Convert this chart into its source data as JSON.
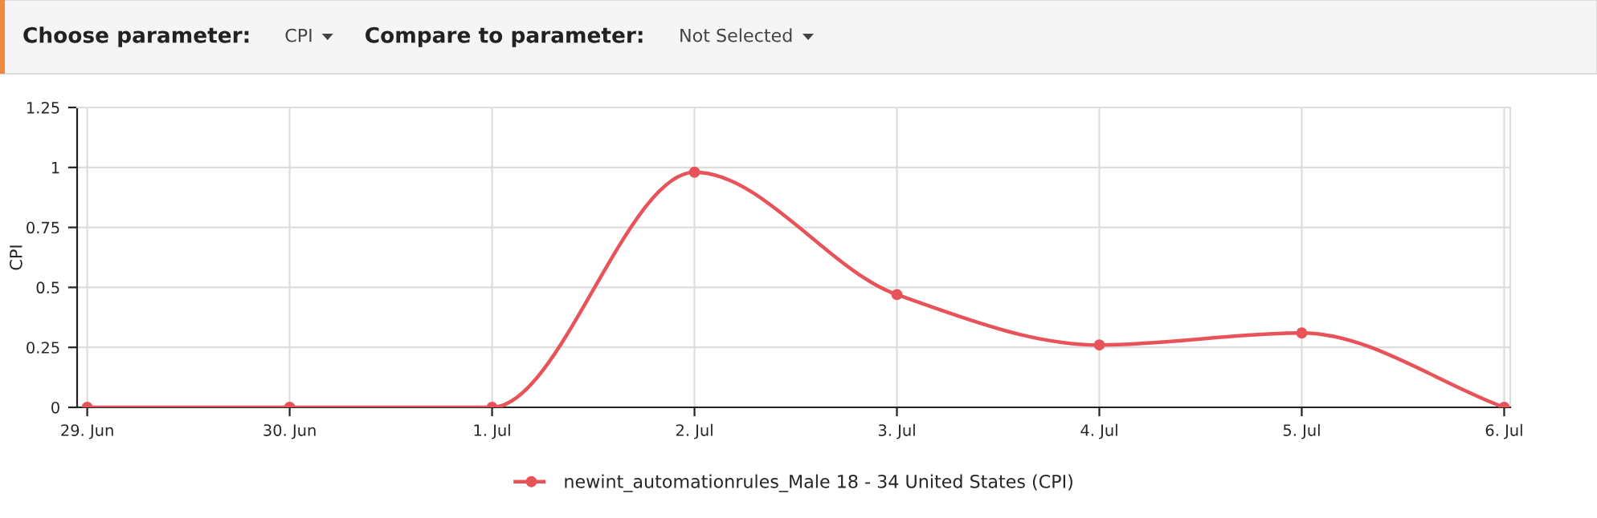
{
  "chart_data": {
    "type": "line",
    "ylabel": "CPI",
    "annotations": [
      "Choose parameter:",
      "CPI",
      "Compare to parameter:",
      "Not Selected"
    ],
    "categories": [
      "29. Jun",
      "30. Jun",
      "1. Jul",
      "2. Jul",
      "3. Jul",
      "4. Jul",
      "5. Jul",
      "6. Jul"
    ],
    "series": [
      {
        "name": "newint_automationrules_Male 18 - 34 United States (CPI)",
        "color": "#e8535a",
        "values": [
          0,
          0,
          0,
          0.98,
          0.47,
          0.26,
          0.31,
          0
        ]
      }
    ],
    "ylim": [
      0,
      1.25
    ],
    "yticks": [
      0,
      0.25,
      0.5,
      0.75,
      1,
      1.25
    ],
    "grid": true,
    "legend": "bottom",
    "marker": "circle",
    "line_style": "solid"
  }
}
